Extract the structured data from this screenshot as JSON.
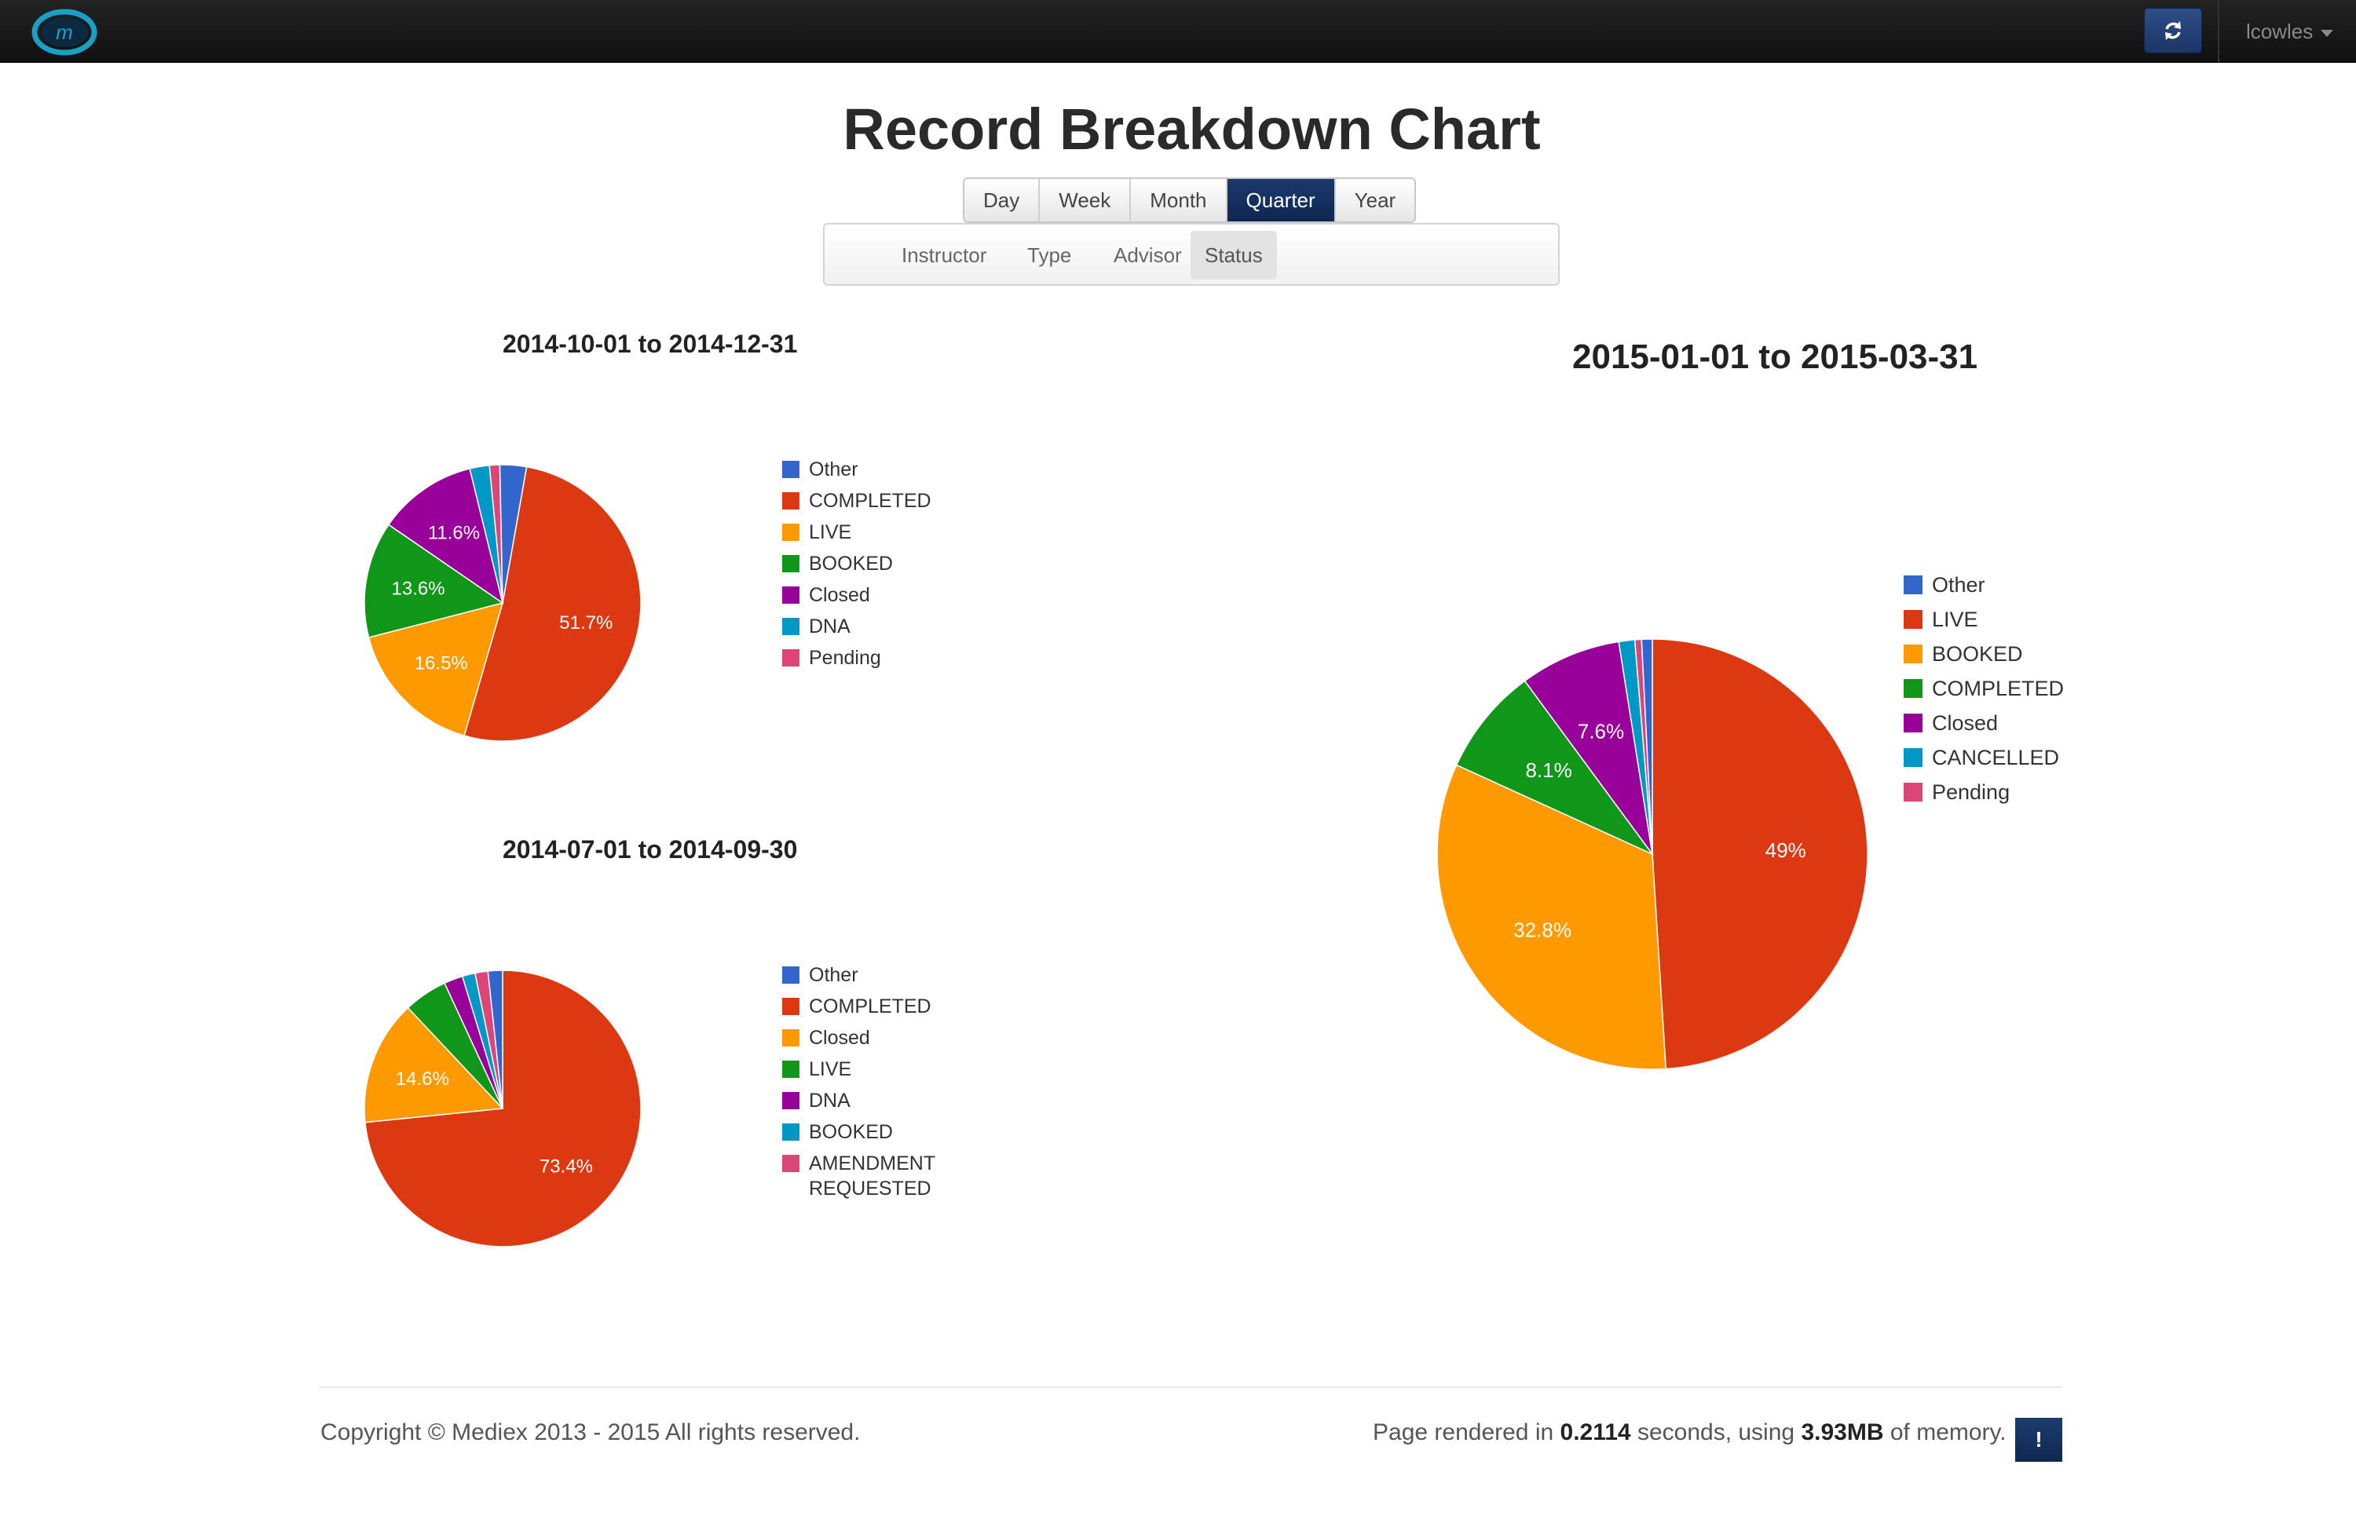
{
  "navbar": {
    "logo_text": "m",
    "user": "lcowles",
    "refresh_icon": "refresh-icon",
    "accent": "#1c3566"
  },
  "title": "Record Breakdown Chart",
  "periods": [
    "Day",
    "Week",
    "Month",
    "Quarter",
    "Year"
  ],
  "active_period": "Quarter",
  "subnav": [
    "Instructor",
    "Type",
    "Advisor",
    "Status"
  ],
  "active_subnav": "Status",
  "chart_data": [
    {
      "type": "pie",
      "title": "2014-10-01 to 2014-12-31",
      "start_angle_deg": 10,
      "legend": "right",
      "series": [
        {
          "name": "COMPLETED",
          "value": 51.7,
          "label": "51.7%",
          "color": "#dc3912"
        },
        {
          "name": "LIVE",
          "value": 16.5,
          "label": "16.5%",
          "color": "#ff9900"
        },
        {
          "name": "BOOKED",
          "value": 13.6,
          "label": "13.6%",
          "color": "#109618"
        },
        {
          "name": "Closed",
          "value": 11.6,
          "label": "11.6%",
          "color": "#990099"
        },
        {
          "name": "DNA",
          "value": 2.3,
          "label": "",
          "color": "#0099c6"
        },
        {
          "name": "Pending",
          "value": 1.2,
          "label": "",
          "color": "#dd4477"
        },
        {
          "name": "Other",
          "value": 3.1,
          "label": "",
          "color": "#3366cc"
        }
      ],
      "legend_order": [
        "Other",
        "COMPLETED",
        "LIVE",
        "BOOKED",
        "Closed",
        "DNA",
        "Pending"
      ]
    },
    {
      "type": "pie",
      "title": "2014-07-01 to 2014-09-30",
      "start_angle_deg": 0,
      "legend": "right",
      "series": [
        {
          "name": "COMPLETED",
          "value": 73.4,
          "label": "73.4%",
          "color": "#dc3912"
        },
        {
          "name": "Closed",
          "value": 14.6,
          "label": "14.6%",
          "color": "#ff9900"
        },
        {
          "name": "LIVE",
          "value": 5.1,
          "label": "",
          "color": "#109618"
        },
        {
          "name": "DNA",
          "value": 2.2,
          "label": "",
          "color": "#990099"
        },
        {
          "name": "BOOKED",
          "value": 1.5,
          "label": "",
          "color": "#0099c6"
        },
        {
          "name": "AMENDMENT REQUESTED",
          "value": 1.5,
          "label": "",
          "color": "#dd4477"
        },
        {
          "name": "Other",
          "value": 1.7,
          "label": "",
          "color": "#3366cc"
        }
      ],
      "legend_order": [
        "Other",
        "COMPLETED",
        "Closed",
        "LIVE",
        "DNA",
        "BOOKED",
        "AMENDMENT REQUESTED"
      ]
    },
    {
      "type": "pie",
      "title": "2015-01-01 to 2015-03-31",
      "start_angle_deg": 0,
      "legend": "right",
      "series": [
        {
          "name": "LIVE",
          "value": 49,
          "label": "49%",
          "color": "#dc3912"
        },
        {
          "name": "BOOKED",
          "value": 32.8,
          "label": "32.8%",
          "color": "#ff9900"
        },
        {
          "name": "COMPLETED",
          "value": 8.1,
          "label": "8.1%",
          "color": "#109618"
        },
        {
          "name": "Closed",
          "value": 7.6,
          "label": "7.6%",
          "color": "#990099"
        },
        {
          "name": "CANCELLED",
          "value": 1.2,
          "label": "",
          "color": "#0099c6"
        },
        {
          "name": "Pending",
          "value": 0.5,
          "label": "",
          "color": "#dd4477"
        },
        {
          "name": "Other",
          "value": 0.8,
          "label": "",
          "color": "#3366cc"
        }
      ],
      "legend_order": [
        "Other",
        "LIVE",
        "BOOKED",
        "COMPLETED",
        "Closed",
        "CANCELLED",
        "Pending"
      ]
    }
  ],
  "footer": {
    "copyright": "Copyright © Mediex 2013 - 2015 All rights reserved.",
    "render_prefix": "Page rendered in",
    "render_seconds": "0.2114",
    "render_mid": "seconds, using",
    "render_memory": "3.93MB",
    "render_suffix": "of memory.",
    "info_label": "!"
  }
}
